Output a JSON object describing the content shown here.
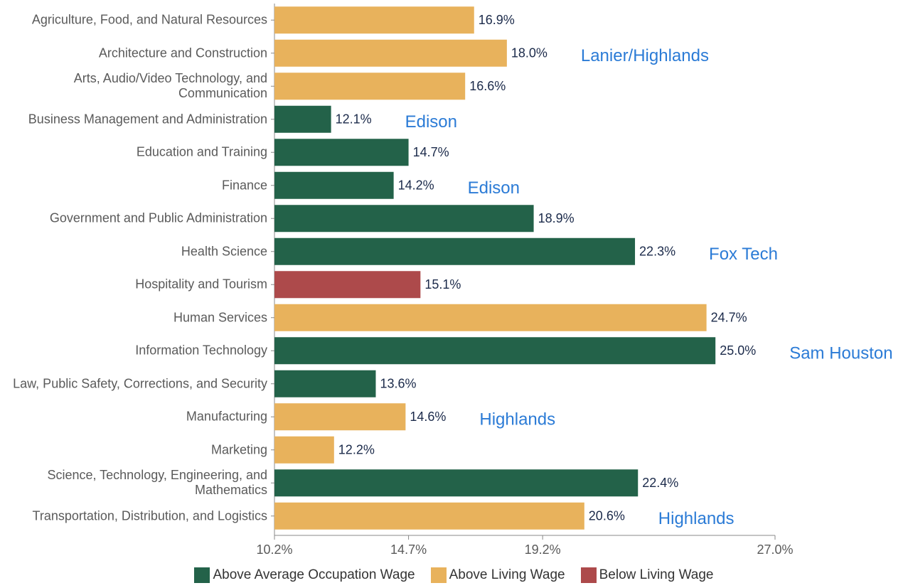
{
  "chart_data": {
    "type": "bar",
    "orientation": "horizontal",
    "categories": [
      "Agriculture, Food, and Natural Resources",
      "Architecture and Construction",
      "Arts, Audio/Video Technology, and Communication",
      "Business Management and Administration",
      "Education and Training",
      "Finance",
      "Government and Public Administration",
      "Health Science",
      "Hospitality and Tourism",
      "Human Services",
      "Information Technology",
      "Law, Public Safety, Corrections, and Security",
      "Manufacturing",
      "Marketing",
      "Science, Technology, Engineering, and Mathematics",
      "Transportation, Distribution, and Logistics"
    ],
    "series": [
      {
        "name": "Above Average Occupation Wage",
        "color": "#236249",
        "values": [
          null,
          null,
          null,
          12.1,
          14.7,
          14.2,
          18.9,
          22.3,
          null,
          null,
          25.0,
          13.6,
          null,
          null,
          22.4,
          null
        ],
        "value_labels": [
          null,
          null,
          null,
          "12.1%",
          "14.7%",
          "14.2%",
          "18.9%",
          "22.3%",
          null,
          null,
          "25.0%",
          "13.6%",
          null,
          null,
          "22.4%",
          null
        ]
      },
      {
        "name": "Above Living Wage",
        "color": "#e8b25c",
        "values": [
          16.9,
          18.0,
          16.6,
          null,
          null,
          null,
          null,
          null,
          null,
          24.7,
          null,
          null,
          14.6,
          12.2,
          null,
          20.6
        ],
        "value_labels": [
          "16.9%",
          "18.0%",
          "16.6%",
          null,
          null,
          null,
          null,
          null,
          null,
          "24.7%",
          null,
          null,
          "14.6%",
          "12.2%",
          null,
          "20.6%"
        ]
      },
      {
        "name": "Below Living Wage",
        "color": "#ad4a4b",
        "values": [
          null,
          null,
          null,
          null,
          null,
          null,
          null,
          null,
          15.1,
          null,
          null,
          null,
          null,
          null,
          null,
          null
        ],
        "value_labels": [
          null,
          null,
          null,
          null,
          null,
          null,
          null,
          null,
          "15.1%",
          null,
          null,
          null,
          null,
          null,
          null,
          null
        ]
      }
    ],
    "annotations": [
      null,
      "Lanier/Highlands",
      null,
      "Edison",
      null,
      "Edison",
      null,
      "Fox Tech",
      null,
      null,
      "Sam Houston",
      null,
      "Highlands",
      null,
      null,
      "Highlands"
    ],
    "xlim": [
      10.2,
      27.0
    ],
    "xticks": [
      {
        "value": 10.2,
        "label": "10.2%"
      },
      {
        "value": 14.7,
        "label": "14.7%"
      },
      {
        "value": 19.2,
        "label": "19.2%"
      },
      {
        "value": 27.0,
        "label": "27.0%"
      }
    ]
  }
}
